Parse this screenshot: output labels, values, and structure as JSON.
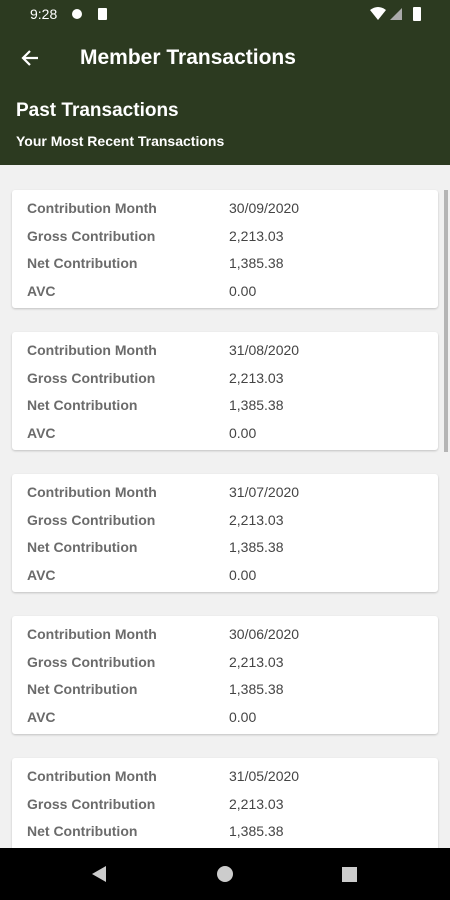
{
  "status_bar": {
    "time": "9:28"
  },
  "app_bar": {
    "title": "Member Transactions"
  },
  "header": {
    "title": "Past Transactions",
    "subtitle": "Your Most Recent Transactions"
  },
  "transactions": [
    {
      "rows": [
        {
          "label": "Contribution Month",
          "value": "30/09/2020"
        },
        {
          "label": "Gross Contribution",
          "value": "2,213.03"
        },
        {
          "label": "Net Contribution",
          "value": "1,385.38"
        },
        {
          "label": "AVC",
          "value": "0.00"
        }
      ]
    },
    {
      "rows": [
        {
          "label": "Contribution Month",
          "value": "31/08/2020"
        },
        {
          "label": "Gross Contribution",
          "value": "2,213.03"
        },
        {
          "label": "Net Contribution",
          "value": "1,385.38"
        },
        {
          "label": "AVC",
          "value": "0.00"
        }
      ]
    },
    {
      "rows": [
        {
          "label": "Contribution Month",
          "value": "31/07/2020"
        },
        {
          "label": "Gross Contribution",
          "value": "2,213.03"
        },
        {
          "label": "Net Contribution",
          "value": "1,385.38"
        },
        {
          "label": "AVC",
          "value": "0.00"
        }
      ]
    },
    {
      "rows": [
        {
          "label": "Contribution Month",
          "value": "30/06/2020"
        },
        {
          "label": "Gross Contribution",
          "value": "2,213.03"
        },
        {
          "label": "Net Contribution",
          "value": "1,385.38"
        },
        {
          "label": "AVC",
          "value": "0.00"
        }
      ]
    },
    {
      "rows": [
        {
          "label": "Contribution Month",
          "value": "31/05/2020"
        },
        {
          "label": "Gross Contribution",
          "value": "2,213.03"
        },
        {
          "label": "Net Contribution",
          "value": "1,385.38"
        }
      ]
    }
  ]
}
